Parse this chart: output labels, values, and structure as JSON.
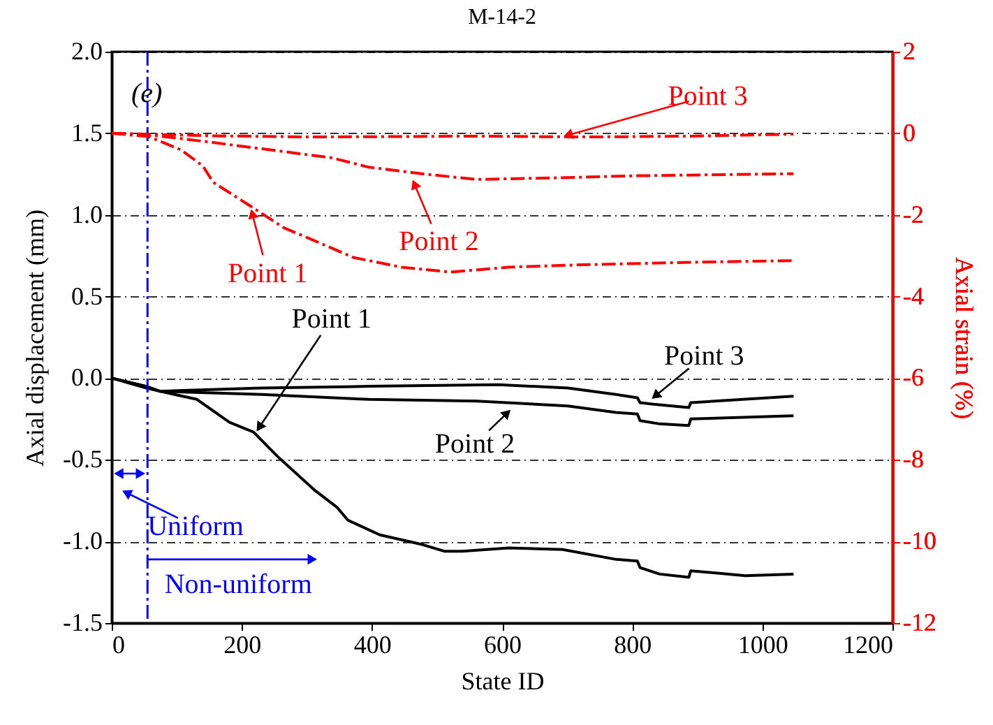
{
  "chart_data": {
    "type": "line",
    "title": "M-14-2",
    "xlabel": "State ID",
    "ylabel": "Axial displacement (mm)",
    "y2label": "Axial strain (%)",
    "xlim": [
      0,
      1200
    ],
    "xticks": [
      0,
      200,
      400,
      600,
      800,
      1000,
      1200
    ],
    "ylim": [
      -1.5,
      2.0
    ],
    "yticks": [
      {
        "value": -1.5,
        "label": "-1.5"
      },
      {
        "value": -1.0,
        "label": "-1.0"
      },
      {
        "value": -0.5,
        "label": "-0.5"
      },
      {
        "value": 0,
        "label": "0.0"
      },
      {
        "value": 0.5,
        "label": "0.5"
      },
      {
        "value": 1.0,
        "label": "1.0"
      },
      {
        "value": 1.5,
        "label": "1.5"
      },
      {
        "value": 2.0,
        "label": "2.0"
      }
    ],
    "y2lim": [
      -12,
      2
    ],
    "y2ticks": [
      -12,
      -10,
      -8,
      -6,
      -4,
      -2,
      0,
      2
    ],
    "grid": "y",
    "marker": "none",
    "series": [
      {
        "color": "#000000",
        "line_style": "solid",
        "x": [
          0,
          53,
          74,
          131,
          181,
          218,
          255,
          313,
          346,
          363,
          412,
          478,
          511,
          539,
          610,
          693,
          775,
          808,
          812,
          842,
          887,
          890,
          974,
          1048
        ],
        "values": [
          0,
          -0.05,
          -0.08,
          -0.13,
          -0.27,
          -0.33,
          -0.48,
          -0.69,
          -0.79,
          -0.87,
          -0.96,
          -1.02,
          -1.06,
          -1.06,
          -1.04,
          -1.05,
          -1.11,
          -1.12,
          -1.16,
          -1.2,
          -1.22,
          -1.18,
          -1.21,
          -1.2
        ]
      },
      {
        "color": "#000000",
        "line_style": "solid",
        "x": [
          0,
          53,
          74,
          231,
          395,
          561,
          701,
          775,
          808,
          812,
          842,
          887,
          890,
          1048
        ],
        "values": [
          0,
          -0.06,
          -0.08,
          -0.1,
          -0.13,
          -0.14,
          -0.17,
          -0.21,
          -0.22,
          -0.26,
          -0.28,
          -0.29,
          -0.25,
          -0.23
        ]
      },
      {
        "color": "#000000",
        "line_style": "solid",
        "x": [
          0,
          53,
          74,
          231,
          395,
          594,
          701,
          775,
          808,
          812,
          833,
          887,
          890,
          1048
        ],
        "values": [
          0,
          -0.05,
          -0.08,
          -0.06,
          -0.05,
          -0.04,
          -0.06,
          -0.1,
          -0.12,
          -0.15,
          -0.16,
          -0.18,
          -0.15,
          -0.11
        ]
      },
      {
        "color": "#ff0000",
        "line_style": "dashed",
        "axis": "y2",
        "x": [
          0,
          57,
          107,
          140,
          156,
          214,
          264,
          313,
          371,
          445,
          520,
          610,
          726,
          891,
          1048
        ],
        "values": [
          0,
          -0.08,
          -0.41,
          -0.8,
          -1.2,
          -1.79,
          -2.31,
          -2.64,
          -3.04,
          -3.28,
          -3.4,
          -3.28,
          -3.22,
          -3.16,
          -3.12
        ]
      },
      {
        "color": "#ff0000",
        "line_style": "dashed",
        "axis": "y2",
        "x": [
          0,
          65,
          148,
          231,
          338,
          395,
          481,
          561,
          685,
          808,
          1048
        ],
        "values": [
          0,
          -0.05,
          -0.21,
          -0.38,
          -0.6,
          -0.83,
          -1.0,
          -1.13,
          -1.09,
          -1.04,
          -0.99
        ]
      },
      {
        "color": "#ff0000",
        "line_style": "dashed",
        "axis": "y2",
        "x": [
          0,
          148,
          313,
          561,
          726,
          891,
          1048
        ],
        "values": [
          0,
          -0.06,
          -0.09,
          -0.07,
          -0.09,
          -0.07,
          -0.02
        ]
      }
    ],
    "ref_lines": [
      {
        "axis": "x",
        "value": 55,
        "color": "#0000ff",
        "line_style": "dashed"
      }
    ],
    "annotations": [
      "(e)",
      {
        "text": "Point 3",
        "x": 693,
        "y": 1.48
      },
      {
        "text": "Point 2",
        "x": 462,
        "y": 1.22
      },
      {
        "text": "Point 1",
        "x": 214,
        "y": 1.04
      },
      {
        "text": "Point 1",
        "x": 222,
        "y": -0.33
      },
      {
        "text": "Point 3",
        "x": 829,
        "y": -0.13
      },
      {
        "text": "Point 2",
        "x": 614,
        "y": -0.19
      },
      "Uniform",
      {
        "text": "Non-uniform",
        "x": 55,
        "y": -1.11
      }
    ]
  }
}
